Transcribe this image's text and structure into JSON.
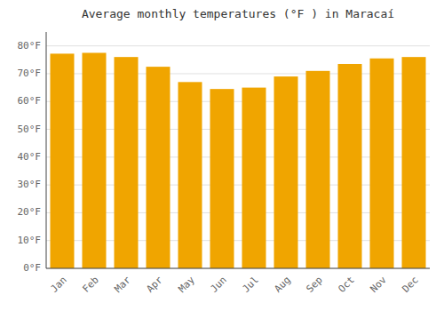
{
  "chart_data": {
    "type": "bar",
    "title": "Average monthly temperatures (°F ) in Maracaí",
    "categories": [
      "Jan",
      "Feb",
      "Mar",
      "Apr",
      "May",
      "Jun",
      "Jul",
      "Aug",
      "Sep",
      "Oct",
      "Nov",
      "Dec"
    ],
    "values": [
      77.2,
      77.5,
      76.0,
      72.5,
      67.0,
      64.5,
      65.0,
      69.0,
      71.0,
      73.5,
      75.5,
      76.0
    ],
    "color": "#F0A500",
    "ylim": [
      0,
      85
    ],
    "yticks": [
      {
        "value": 0,
        "label": "0°F"
      },
      {
        "value": 10,
        "label": "10°F"
      },
      {
        "value": 20,
        "label": "20°F"
      },
      {
        "value": 30,
        "label": "30°F"
      },
      {
        "value": 40,
        "label": "40°F"
      },
      {
        "value": 50,
        "label": "50°F"
      },
      {
        "value": 60,
        "label": "60°F"
      },
      {
        "value": 70,
        "label": "70°F"
      },
      {
        "value": 80,
        "label": "80°F"
      }
    ],
    "grid": true
  }
}
